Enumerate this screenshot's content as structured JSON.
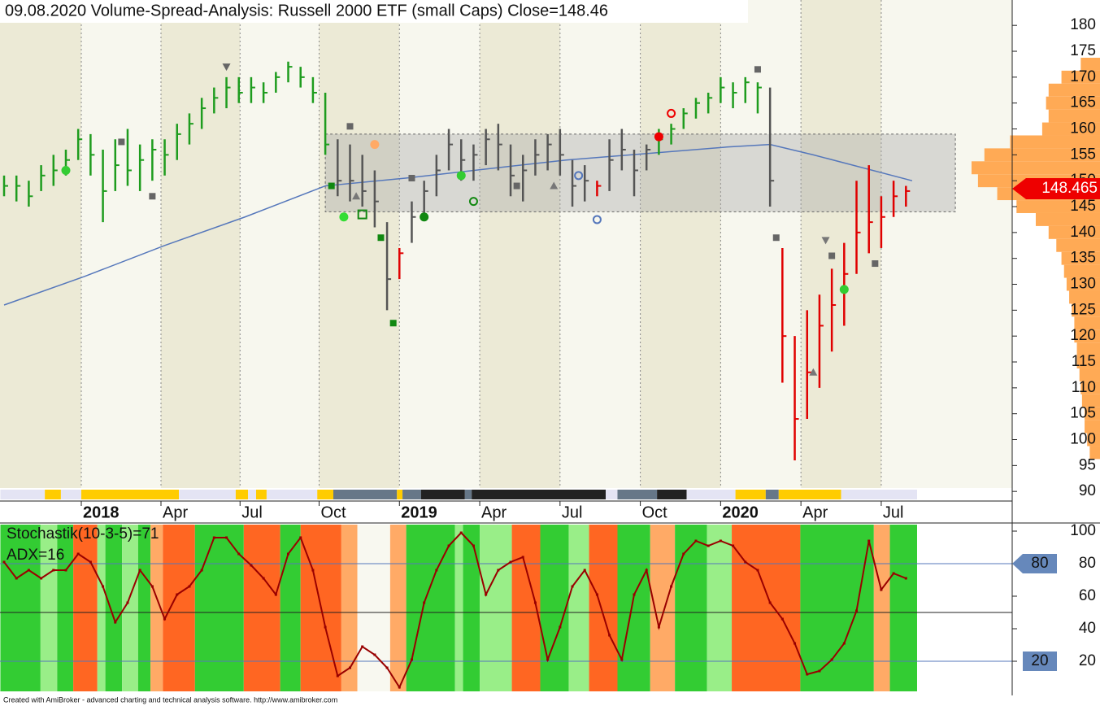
{
  "chart_data": [
    {
      "type": "ohlc",
      "title": "09.08.2020  Volume-Spread-Analysis: Russell 2000 ETF (small Caps)   Close=148.46",
      "xlim": [
        -0.66,
        163.2
      ],
      "ylim": [
        88.3,
        184.9
      ],
      "yticks": [
        90,
        95,
        100,
        105,
        110,
        115,
        120,
        125,
        130,
        135,
        140,
        145,
        150,
        155,
        160,
        165,
        170,
        175,
        180
      ],
      "xticks": [
        {
          "value": 12.5,
          "label": "2018"
        },
        {
          "value": 25.4,
          "label": "Apr"
        },
        {
          "value": 38.2,
          "label": "Jul"
        },
        {
          "value": 51,
          "label": "Oct"
        },
        {
          "value": 64,
          "label": "2019"
        },
        {
          "value": 77,
          "label": "Apr"
        },
        {
          "value": 90,
          "label": "Jul"
        },
        {
          "value": 103,
          "label": "Oct"
        },
        {
          "value": 116,
          "label": "2020"
        },
        {
          "value": 129,
          "label": "Apr"
        },
        {
          "value": 142,
          "label": "Jul"
        }
      ],
      "x": [
        0,
        2,
        4,
        6,
        8,
        10,
        12,
        14,
        16,
        18,
        20,
        22,
        24,
        26,
        28,
        30,
        32,
        34,
        36,
        38,
        40,
        42,
        44,
        46,
        48,
        50,
        52,
        54,
        56,
        58,
        60,
        62,
        64,
        66,
        68,
        70,
        72,
        74,
        76,
        78,
        80,
        82,
        84,
        86,
        88,
        90,
        92,
        94,
        96,
        98,
        100,
        102,
        104,
        106,
        108,
        110,
        112,
        114,
        116,
        118,
        120,
        122,
        124,
        126,
        128,
        130,
        132,
        134,
        136,
        138,
        140,
        142,
        144,
        146
      ],
      "high": [
        151,
        151,
        150,
        153,
        155,
        156,
        160,
        159,
        156,
        158,
        160,
        157,
        158,
        158,
        161,
        163,
        166,
        168,
        170,
        170,
        170,
        169,
        171,
        173,
        172,
        170,
        167,
        158,
        157,
        155,
        152,
        142,
        137,
        146,
        150,
        155,
        160,
        158,
        157,
        160,
        161,
        157,
        155,
        158,
        159,
        160,
        154,
        153,
        150,
        158,
        160,
        156,
        157,
        160,
        161,
        164,
        166,
        167,
        170,
        169,
        170,
        169,
        168,
        137,
        120,
        125,
        128,
        133,
        138,
        150,
        153,
        147,
        150,
        149
      ],
      "low": [
        147,
        146,
        145,
        148,
        149,
        151,
        154,
        151,
        142,
        148,
        149,
        148,
        150,
        151,
        154,
        157,
        160,
        163,
        164,
        165,
        165,
        165,
        167,
        169,
        168,
        165,
        155,
        147,
        146,
        145,
        141,
        125,
        131,
        138,
        143,
        147,
        152,
        150,
        150,
        153,
        152,
        147,
        146,
        151,
        152,
        151,
        145,
        146,
        147,
        148,
        152,
        147,
        152,
        155,
        157,
        160,
        162,
        163,
        165,
        164,
        165,
        163,
        145,
        111,
        96,
        104,
        110,
        117,
        122,
        132,
        136,
        137,
        143,
        145
      ],
      "close": [
        149,
        149,
        147,
        151,
        152,
        154,
        158,
        155,
        148,
        153,
        152,
        154,
        156,
        155,
        159,
        161,
        164,
        166,
        168,
        167,
        168,
        167,
        170,
        172,
        170,
        167,
        157,
        150,
        150,
        148,
        146,
        131,
        136,
        143,
        148,
        152,
        157,
        154,
        155,
        158,
        157,
        151,
        152,
        155,
        157,
        155,
        149,
        150,
        149,
        154,
        156,
        152,
        156,
        158,
        160,
        163,
        165,
        166,
        168,
        167,
        169,
        168,
        150,
        120,
        104,
        113,
        122,
        126,
        132,
        140,
        142,
        143,
        147,
        148
      ],
      "colors": [
        "#1e9c1e",
        "#1e9c1e",
        "#1e9c1e",
        "#1e9c1e",
        "#1e9c1e",
        "#1e9c1e",
        "#1e9c1e",
        "#1e9c1e",
        "#1e9c1e",
        "#1e9c1e",
        "#1e9c1e",
        "#1e9c1e",
        "#1e9c1e",
        "#1e9c1e",
        "#1e9c1e",
        "#1e9c1e",
        "#1e9c1e",
        "#1e9c1e",
        "#1e9c1e",
        "#1e9c1e",
        "#1e9c1e",
        "#1e9c1e",
        "#1e9c1e",
        "#1e9c1e",
        "#1e9c1e",
        "#1e9c1e",
        "#1e9c1e",
        "#555555",
        "#555555",
        "#555555",
        "#555555",
        "#555555",
        "#e00000",
        "#555555",
        "#555555",
        "#555555",
        "#555555",
        "#555555",
        "#555555",
        "#555555",
        "#555555",
        "#555555",
        "#555555",
        "#555555",
        "#555555",
        "#555555",
        "#555555",
        "#555555",
        "#e00000",
        "#555555",
        "#555555",
        "#555555",
        "#555555",
        "#1e9c1e",
        "#1e9c1e",
        "#1e9c1e",
        "#1e9c1e",
        "#1e9c1e",
        "#1e9c1e",
        "#1e9c1e",
        "#1e9c1e",
        "#1e9c1e",
        "#555555",
        "#e00000",
        "#e00000",
        "#e00000",
        "#e00000",
        "#e00000",
        "#e00000",
        "#e00000",
        "#e00000",
        "#e00000",
        "#e00000",
        "#e00000"
      ],
      "ma": {
        "color": "#5577bb",
        "x": [
          0,
          13,
          26,
          39,
          52,
          65,
          91,
          117,
          124,
          131,
          147
        ],
        "values": [
          126,
          131.5,
          137.5,
          143,
          149,
          150.5,
          154,
          156.5,
          157,
          155,
          150
        ]
      },
      "range_box": {
        "x": [
          52,
          154
        ],
        "y": [
          144,
          159
        ]
      },
      "signals": [
        {
          "x": 36,
          "y": 172,
          "shape": "tri-down",
          "color": "#666666"
        },
        {
          "x": 19,
          "y": 157.5,
          "shape": "square",
          "color": "#666666"
        },
        {
          "x": 10,
          "y": 152,
          "shape": "circle",
          "color": "#33cc33"
        },
        {
          "x": 24,
          "y": 147,
          "shape": "square",
          "color": "#666666"
        },
        {
          "x": 56,
          "y": 160.5,
          "shape": "square",
          "color": "#666666"
        },
        {
          "x": 60,
          "y": 157,
          "shape": "circle",
          "color": "#ffaa66"
        },
        {
          "x": 53,
          "y": 149,
          "shape": "square",
          "color": "#118811"
        },
        {
          "x": 57,
          "y": 147,
          "shape": "tri-up",
          "color": "#777777"
        },
        {
          "x": 55,
          "y": 143,
          "shape": "circle",
          "color": "#33dd33"
        },
        {
          "x": 58,
          "y": 143.5,
          "shape": "hollow-square",
          "color": "#118811"
        },
        {
          "x": 61,
          "y": 139,
          "shape": "square",
          "color": "#118811"
        },
        {
          "x": 63,
          "y": 122.5,
          "shape": "square",
          "color": "#118811"
        },
        {
          "x": 66,
          "y": 150.5,
          "shape": "square",
          "color": "#666666"
        },
        {
          "x": 68,
          "y": 143,
          "shape": "circle",
          "color": "#118811"
        },
        {
          "x": 74,
          "y": 151,
          "shape": "circle",
          "color": "#33cc33"
        },
        {
          "x": 76,
          "y": 146,
          "shape": "ring",
          "color": "#118811"
        },
        {
          "x": 83,
          "y": 149,
          "shape": "square",
          "color": "#666666"
        },
        {
          "x": 89,
          "y": 149,
          "shape": "tri-up",
          "color": "#777777"
        },
        {
          "x": 93,
          "y": 151,
          "shape": "ring",
          "color": "#5577bb"
        },
        {
          "x": 96,
          "y": 142.5,
          "shape": "ring",
          "color": "#5577bb"
        },
        {
          "x": 106,
          "y": 158.5,
          "shape": "circle",
          "color": "#ee0000"
        },
        {
          "x": 108,
          "y": 163,
          "shape": "ring",
          "color": "#ee0000"
        },
        {
          "x": 122,
          "y": 171.5,
          "shape": "square",
          "color": "#666666"
        },
        {
          "x": 125,
          "y": 139,
          "shape": "square",
          "color": "#666666"
        },
        {
          "x": 131,
          "y": 113,
          "shape": "tri-up",
          "color": "#777777"
        },
        {
          "x": 133,
          "y": 138.5,
          "shape": "tri-down",
          "color": "#777777"
        },
        {
          "x": 134,
          "y": 135.5,
          "shape": "square",
          "color": "#666666"
        },
        {
          "x": 136,
          "y": 129,
          "shape": "circle",
          "color": "#33cc33"
        },
        {
          "x": 141,
          "y": 134,
          "shape": "square",
          "color": "#666666"
        }
      ],
      "volume_profile": {
        "color": "#ffaa55",
        "levels": [
          97.5,
          100,
          102.5,
          105,
          107.5,
          110,
          112.5,
          115,
          117.5,
          120,
          122.5,
          125,
          127.5,
          130,
          132.5,
          135,
          137.5,
          140,
          142.5,
          145,
          147.5,
          150,
          152.5,
          155,
          157.5,
          160,
          162.5,
          165,
          167.5,
          170,
          172.5
        ],
        "values": [
          8,
          10,
          12,
          12,
          14,
          15,
          16,
          18,
          18,
          20,
          20,
          22,
          24,
          26,
          28,
          30,
          34,
          40,
          50,
          65,
          80,
          95,
          100,
          90,
          70,
          45,
          40,
          42,
          40,
          30,
          15
        ]
      },
      "last_price": 148.465,
      "last_price_color": "#ee0000",
      "strip": [
        [
          -0.6,
          6.6,
          "#e4e4f4"
        ],
        [
          6.6,
          9.2,
          "#ffcc00"
        ],
        [
          9.2,
          12.5,
          "#e4e4f4"
        ],
        [
          12.5,
          28.3,
          "#ffcc00"
        ],
        [
          28.3,
          37.5,
          "#e4e4f4"
        ],
        [
          37.5,
          39.5,
          "#ffcc00"
        ],
        [
          39.5,
          40.8,
          "#e4e4f4"
        ],
        [
          40.8,
          42.5,
          "#ffcc00"
        ],
        [
          42.5,
          50.7,
          "#e4e4f4"
        ],
        [
          50.7,
          53.3,
          "#ffcc00"
        ],
        [
          53.3,
          63.6,
          "#667788"
        ],
        [
          63.6,
          64.5,
          "#ffcc00"
        ],
        [
          64.5,
          67.5,
          "#667788"
        ],
        [
          67.5,
          74.6,
          "#222222"
        ],
        [
          74.6,
          75.7,
          "#667788"
        ],
        [
          75.7,
          97.4,
          "#222222"
        ],
        [
          97.4,
          99.3,
          "#e4e4f4"
        ],
        [
          99.3,
          105.7,
          "#667788"
        ],
        [
          105.7,
          110.5,
          "#222222"
        ],
        [
          110.5,
          118.4,
          "#e4e4f4"
        ],
        [
          118.4,
          123.3,
          "#ffcc00"
        ],
        [
          123.3,
          125.4,
          "#667788"
        ],
        [
          125.4,
          135.5,
          "#ffcc00"
        ],
        [
          135.5,
          147.8,
          "#e4e4f4"
        ]
      ]
    },
    {
      "type": "line",
      "labels": [
        "Stochastik(10-3-5)=71",
        "ADX=16"
      ],
      "color": "#990000",
      "ylim": [
        1.5,
        104
      ],
      "yticks": [
        20,
        40,
        60,
        80,
        100
      ],
      "levels": [
        80,
        50,
        20
      ],
      "markers": [
        80,
        20
      ],
      "x": [
        0,
        2,
        4,
        6,
        8,
        10,
        12,
        14,
        16,
        18,
        20,
        22,
        24,
        26,
        28,
        30,
        32,
        34,
        36,
        38,
        40,
        42,
        44,
        46,
        48,
        50,
        52,
        54,
        56,
        58,
        60,
        62,
        64,
        66,
        68,
        70,
        72,
        74,
        76,
        78,
        80,
        82,
        84,
        86,
        88,
        90,
        92,
        94,
        96,
        98,
        100,
        102,
        104,
        106,
        108,
        110,
        112,
        114,
        116,
        118,
        120,
        122,
        124,
        126,
        128,
        130,
        132,
        134,
        136,
        138,
        140,
        142,
        144,
        146
      ],
      "values": [
        81,
        71,
        76,
        71,
        76,
        76,
        86,
        81,
        66,
        44,
        56,
        76,
        66,
        46,
        61,
        66,
        76,
        96,
        96,
        86,
        79,
        71,
        61,
        86,
        96,
        76,
        41,
        11,
        16,
        29,
        24,
        16,
        4,
        21,
        56,
        76,
        91,
        99,
        91,
        61,
        76,
        81,
        84,
        56,
        21,
        41,
        66,
        76,
        61,
        36,
        21,
        61,
        76,
        41,
        66,
        86,
        94,
        91,
        94,
        91,
        81,
        76,
        56,
        46,
        31,
        12,
        14,
        21,
        31,
        51,
        94,
        64,
        74,
        71
      ],
      "stripes": [
        [
          -0.6,
          5.9,
          "#33cc33"
        ],
        [
          5.9,
          8.6,
          "#99ee88"
        ],
        [
          8.6,
          11.2,
          "#33cc33"
        ],
        [
          11.2,
          15.1,
          "#ff6622"
        ],
        [
          15.1,
          16.4,
          "#99ee88"
        ],
        [
          16.4,
          19.1,
          "#33cc33"
        ],
        [
          19.1,
          21.7,
          "#99ee88"
        ],
        [
          21.7,
          23.7,
          "#33cc33"
        ],
        [
          23.7,
          25.7,
          "#ffaa66"
        ],
        [
          25.7,
          30.9,
          "#ff6622"
        ],
        [
          30.9,
          38.8,
          "#33cc33"
        ],
        [
          38.8,
          44.7,
          "#ff6622"
        ],
        [
          44.7,
          48,
          "#33cc33"
        ],
        [
          48,
          54.6,
          "#ff6622"
        ],
        [
          54.6,
          57.2,
          "#ffaa66"
        ],
        [
          57.2,
          62.5,
          "#f8f8f0"
        ],
        [
          62.5,
          65.1,
          "#ffaa66"
        ],
        [
          65.1,
          73,
          "#33cc33"
        ],
        [
          73,
          74.3,
          "#99ee88"
        ],
        [
          74.3,
          77,
          "#33cc33"
        ],
        [
          77,
          82.2,
          "#99ee88"
        ],
        [
          82.2,
          86.8,
          "#ff6622"
        ],
        [
          86.8,
          91.4,
          "#33cc33"
        ],
        [
          91.4,
          94.7,
          "#99ee88"
        ],
        [
          94.7,
          99.3,
          "#ff6622"
        ],
        [
          99.3,
          104.6,
          "#33cc33"
        ],
        [
          104.6,
          108.6,
          "#ffaa66"
        ],
        [
          108.6,
          113.8,
          "#33cc33"
        ],
        [
          113.8,
          117.8,
          "#99ee88"
        ],
        [
          117.8,
          128.9,
          "#ff6622"
        ],
        [
          128.9,
          140.8,
          "#33cc33"
        ],
        [
          140.8,
          143.4,
          "#ffaa66"
        ],
        [
          143.4,
          147.8,
          "#33cc33"
        ]
      ]
    }
  ],
  "footer": "Created with AmiBroker - advanced charting and technical analysis software. http://www.amibroker.com"
}
